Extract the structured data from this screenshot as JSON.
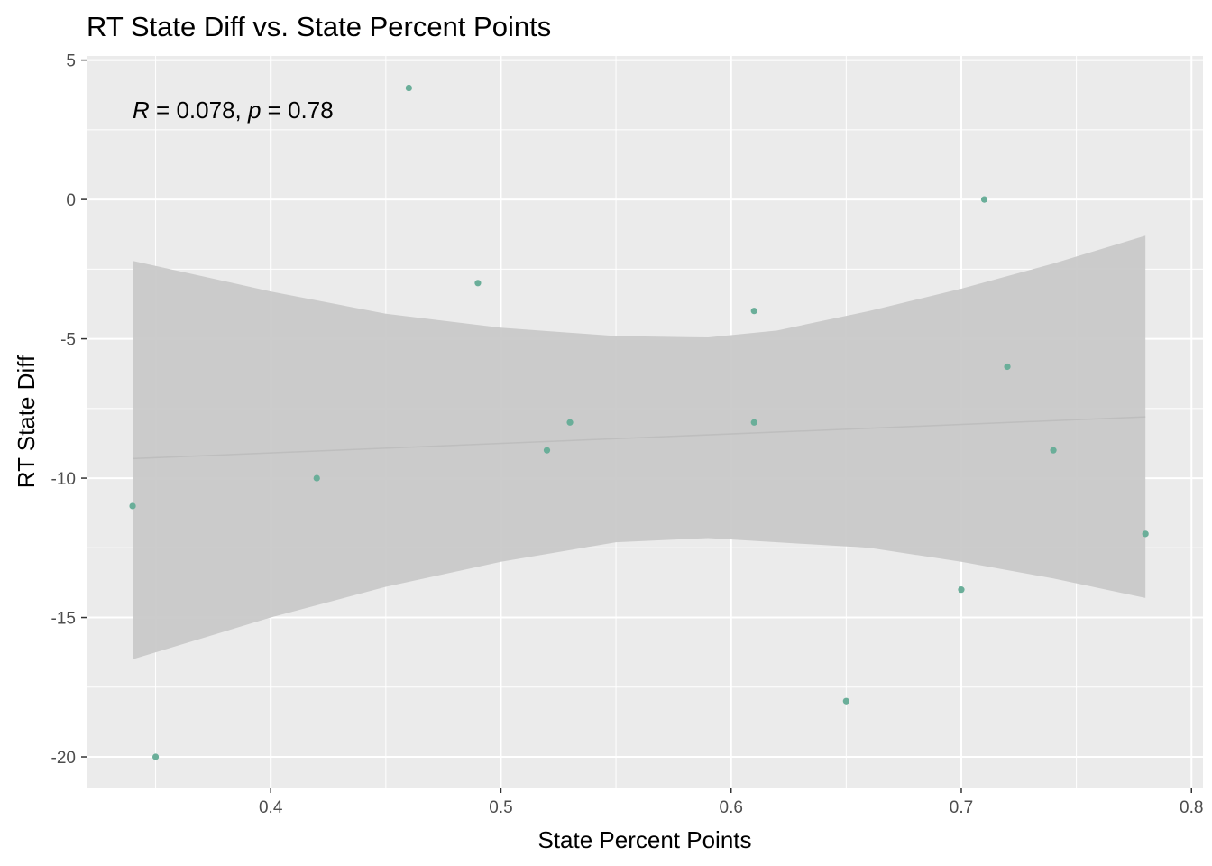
{
  "chart_data": {
    "type": "scatter",
    "title": "RT State Diff vs. State Percent Points",
    "xlabel": "State Percent Points",
    "ylabel": "RT State Diff",
    "xlim": [
      0.32,
      0.805
    ],
    "ylim": [
      -21.1,
      5.15
    ],
    "x_ticks": [
      0.4,
      0.5,
      0.6,
      0.7,
      0.8
    ],
    "x_tick_labels": [
      "0.4",
      "0.5",
      "0.6",
      "0.7",
      "0.8"
    ],
    "y_ticks": [
      5,
      0,
      -5,
      -10,
      -15,
      -20
    ],
    "y_tick_labels": [
      "5",
      "0",
      "-5",
      "-10",
      "-15",
      "-20"
    ],
    "grid": true,
    "points": {
      "color": "#6aae99",
      "x": [
        0.34,
        0.35,
        0.42,
        0.46,
        0.49,
        0.52,
        0.53,
        0.61,
        0.61,
        0.65,
        0.7,
        0.71,
        0.72,
        0.74,
        0.78
      ],
      "y": [
        -11,
        -20,
        -10,
        4,
        -3,
        -9,
        -8,
        -4,
        -8,
        -18,
        -14,
        0,
        -6,
        -9,
        -12
      ]
    },
    "regression": {
      "color": "#bebebe",
      "line": {
        "x": [
          0.34,
          0.78
        ],
        "y": [
          -9.3,
          -7.8
        ]
      },
      "ribbon": {
        "color": "#c9c9c9",
        "x": [
          0.34,
          0.4,
          0.45,
          0.5,
          0.55,
          0.59,
          0.62,
          0.66,
          0.7,
          0.74,
          0.78
        ],
        "upper": [
          -2.2,
          -3.3,
          -4.1,
          -4.6,
          -4.9,
          -4.95,
          -4.7,
          -4.0,
          -3.2,
          -2.3,
          -1.3
        ],
        "lower": [
          -16.5,
          -15.0,
          -13.9,
          -13.0,
          -12.3,
          -12.15,
          -12.3,
          -12.5,
          -13.0,
          -13.6,
          -14.3
        ]
      }
    },
    "annotation": {
      "r_symbol": "R",
      "r_text": " = 0.078, ",
      "p_symbol": "p",
      "p_text": " = 0.78",
      "x": 0.34,
      "y": 3.2
    }
  }
}
